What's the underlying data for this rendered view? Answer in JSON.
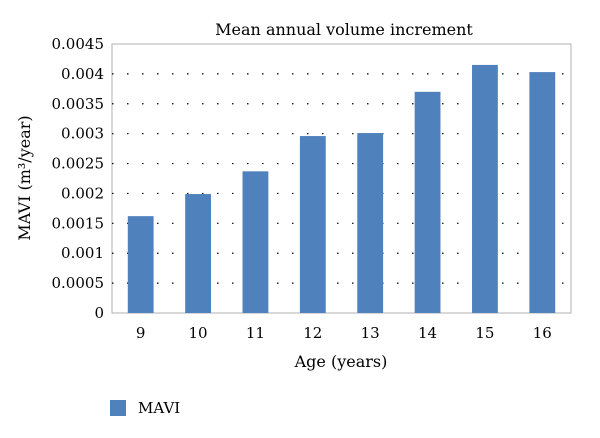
{
  "chart_data": {
    "type": "bar",
    "title": "Mean annual volume increment",
    "xlabel": "Age (years)",
    "ylabel": "MAVI (m³/year)",
    "categories": [
      "9",
      "10",
      "11",
      "12",
      "13",
      "14",
      "15",
      "16"
    ],
    "series": [
      {
        "name": "MAVI",
        "color": "#4f81bd",
        "values": [
          0.00162,
          0.00199,
          0.00237,
          0.00296,
          0.00301,
          0.0037,
          0.00415,
          0.00403
        ]
      }
    ],
    "ylim": [
      0,
      0.0045
    ],
    "yticks": [
      "0",
      "0.0005",
      "0.001",
      "0.0015",
      "0.002",
      "0.0025",
      "0.003",
      "0.0035",
      "0.004",
      "0.0045"
    ],
    "grid": "horizontal dotted",
    "legend": "bottom-left"
  }
}
